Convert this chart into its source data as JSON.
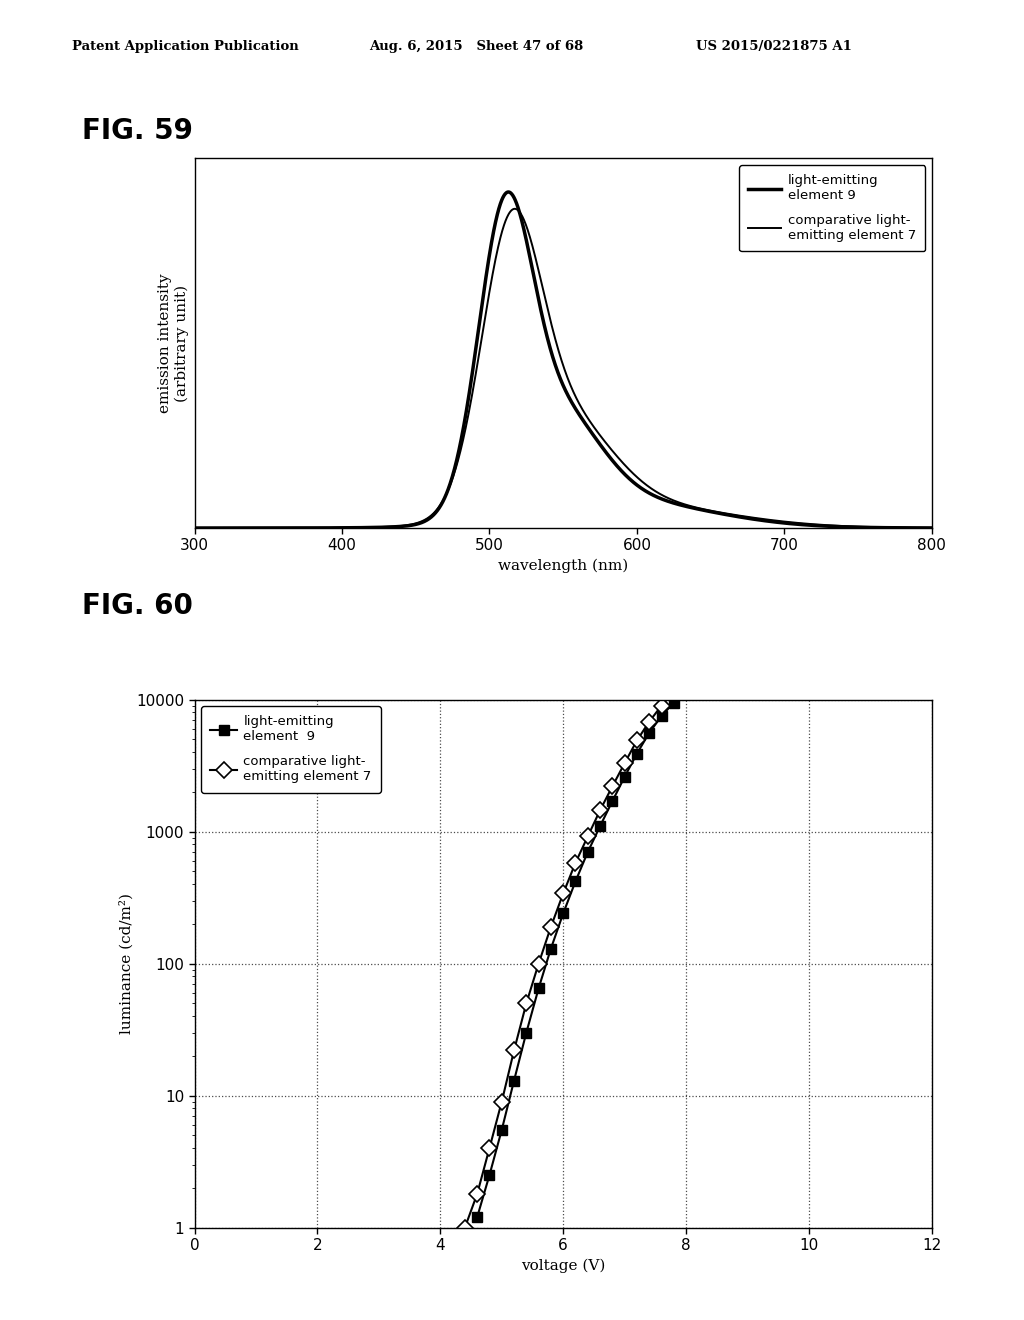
{
  "header_left": "Patent Application Publication",
  "header_mid": "Aug. 6, 2015   Sheet 47 of 68",
  "header_right": "US 2015/0221875 A1",
  "fig59_label": "FIG. 59",
  "fig60_label": "FIG. 60",
  "fig59": {
    "xlabel": "wavelength (nm)",
    "ylabel": "emission intensity\n(arbitrary unit)",
    "xlim": [
      300,
      800
    ],
    "legend1": "light-emitting\nelement 9",
    "legend2": "comparative light-\nemitting element 7"
  },
  "fig60": {
    "xlabel": "voltage (V)",
    "ylabel": "luminance (cd/m²)",
    "xlim": [
      0,
      12
    ],
    "ylim": [
      1,
      10000
    ],
    "legend1": "light-emitting\nelement  9",
    "legend2": "comparative light-\nemitting element 7"
  },
  "background": "#ffffff",
  "line_color": "#000000"
}
